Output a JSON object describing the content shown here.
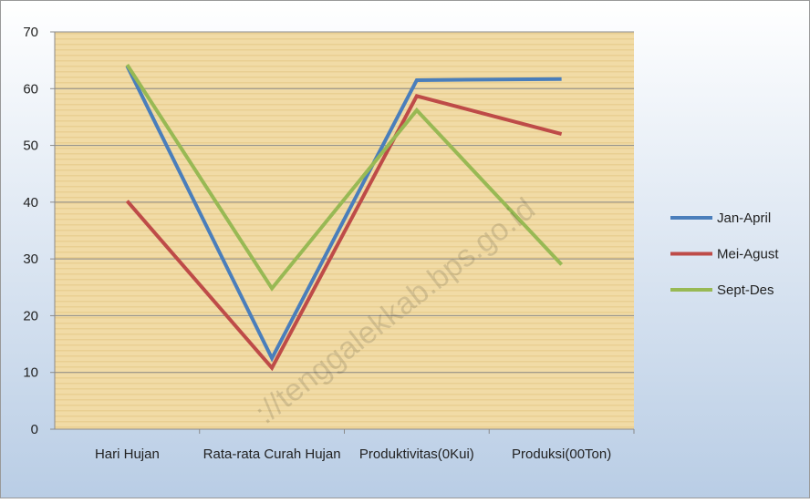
{
  "chart_data": {
    "type": "line",
    "watermark": "://tenggalekkab.bps.go.id",
    "categories": [
      "Hari Hujan",
      "Rata-rata Curah Hujan",
      "Produktivitas(0Kui)",
      "Produksi(00Ton)"
    ],
    "series": [
      {
        "name": "Jan-April",
        "color": "#4a7ebb",
        "values": [
          64,
          12.5,
          61.5,
          61.7
        ]
      },
      {
        "name": "Mei-Agust",
        "color": "#be4b48",
        "values": [
          40.2,
          10.8,
          58.7,
          52
        ]
      },
      {
        "name": "Sept-Des",
        "color": "#98b954",
        "values": [
          64.2,
          24.8,
          56.2,
          29
        ]
      }
    ],
    "ylim": [
      0,
      70
    ],
    "yticks": [
      0,
      10,
      20,
      30,
      40,
      50,
      60,
      70
    ],
    "grid": true,
    "legend": "right"
  }
}
